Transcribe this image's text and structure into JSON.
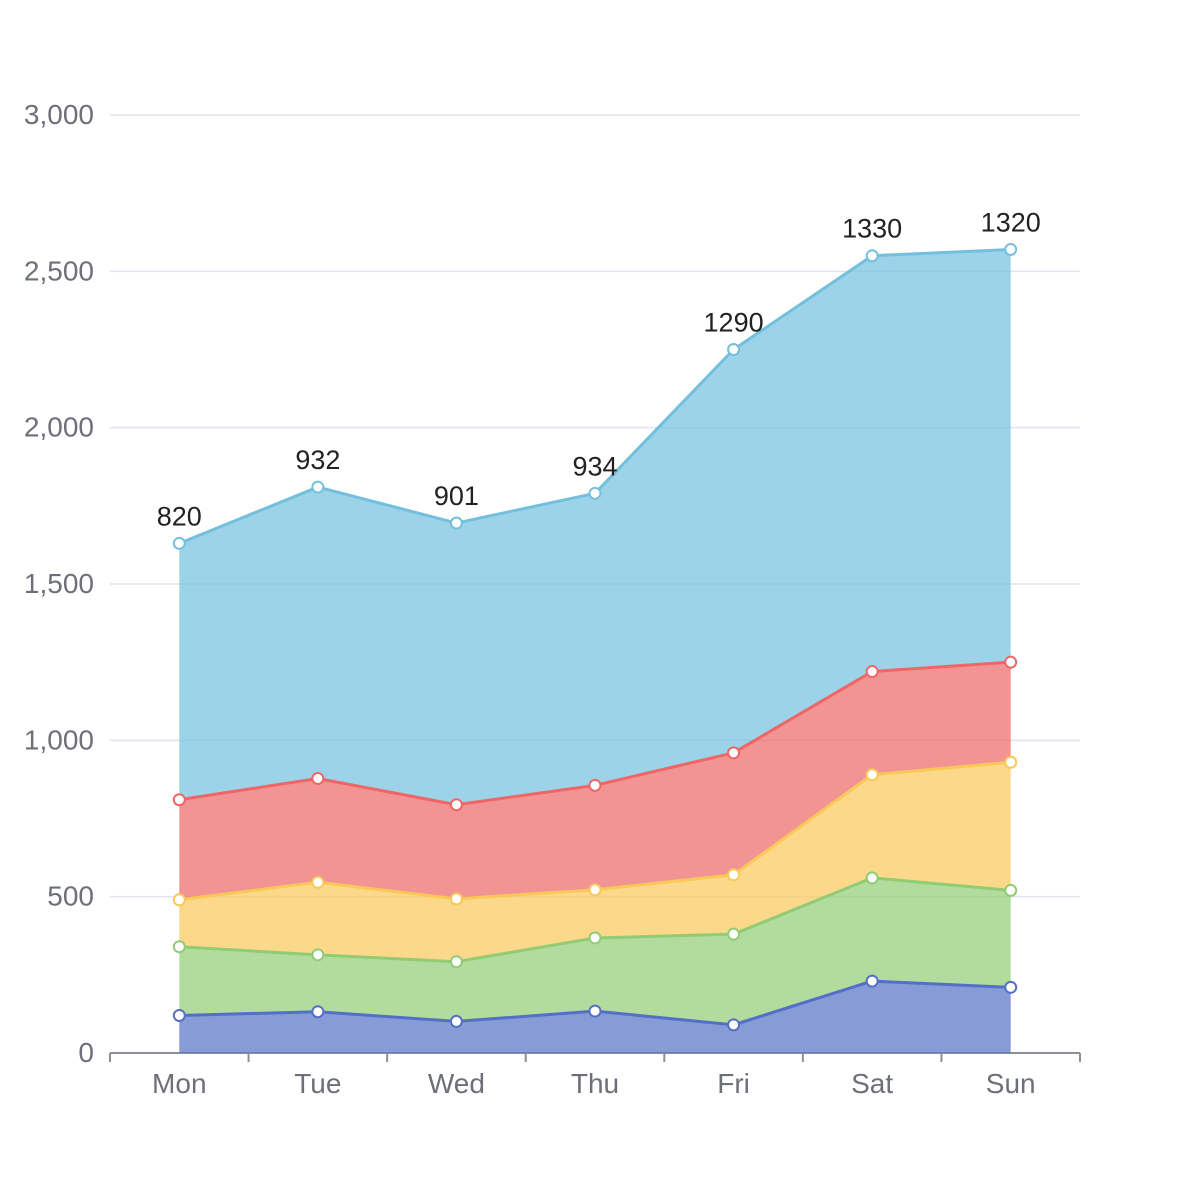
{
  "chart_data": {
    "type": "area",
    "stacked": true,
    "title": "",
    "xlabel": "",
    "ylabel": "",
    "categories": [
      "Mon",
      "Tue",
      "Wed",
      "Thu",
      "Fri",
      "Sat",
      "Sun"
    ],
    "series": [
      {
        "color": "#5470c6",
        "values": [
          120,
          132,
          101,
          134,
          90,
          230,
          210
        ],
        "show_labels": false
      },
      {
        "color": "#91cc75",
        "values": [
          220,
          182,
          191,
          234,
          290,
          330,
          310
        ],
        "show_labels": false
      },
      {
        "color": "#fac858",
        "values": [
          150,
          232,
          201,
          154,
          190,
          330,
          410
        ],
        "show_labels": false
      },
      {
        "color": "#ee6666",
        "values": [
          320,
          332,
          301,
          334,
          390,
          330,
          320
        ],
        "show_labels": false
      },
      {
        "color": "#73c0de",
        "values": [
          820,
          932,
          901,
          934,
          1290,
          1330,
          1320
        ],
        "show_labels": true,
        "labels": [
          "820",
          "932",
          "901",
          "934",
          "1290",
          "1330",
          "1320"
        ]
      }
    ],
    "ylim": [
      0,
      3000
    ],
    "y_ticks": [
      {
        "value": 0,
        "label": "0"
      },
      {
        "value": 500,
        "label": "500"
      },
      {
        "value": 1000,
        "label": "1,000"
      },
      {
        "value": 1500,
        "label": "1,500"
      },
      {
        "value": 2000,
        "label": "2,000"
      },
      {
        "value": 2500,
        "label": "2,500"
      },
      {
        "value": 3000,
        "label": "3,000"
      }
    ],
    "grid": true,
    "legend": "none",
    "style": {
      "grid_color": "#e0e4ec",
      "axis_color": "#8a8f99",
      "axis_label_color": "#6e7079",
      "data_label_color": "#222222",
      "marker_fill": "#ffffff",
      "area_opacity": 0.7,
      "line_width": 3,
      "marker_radius": 5.5
    }
  }
}
